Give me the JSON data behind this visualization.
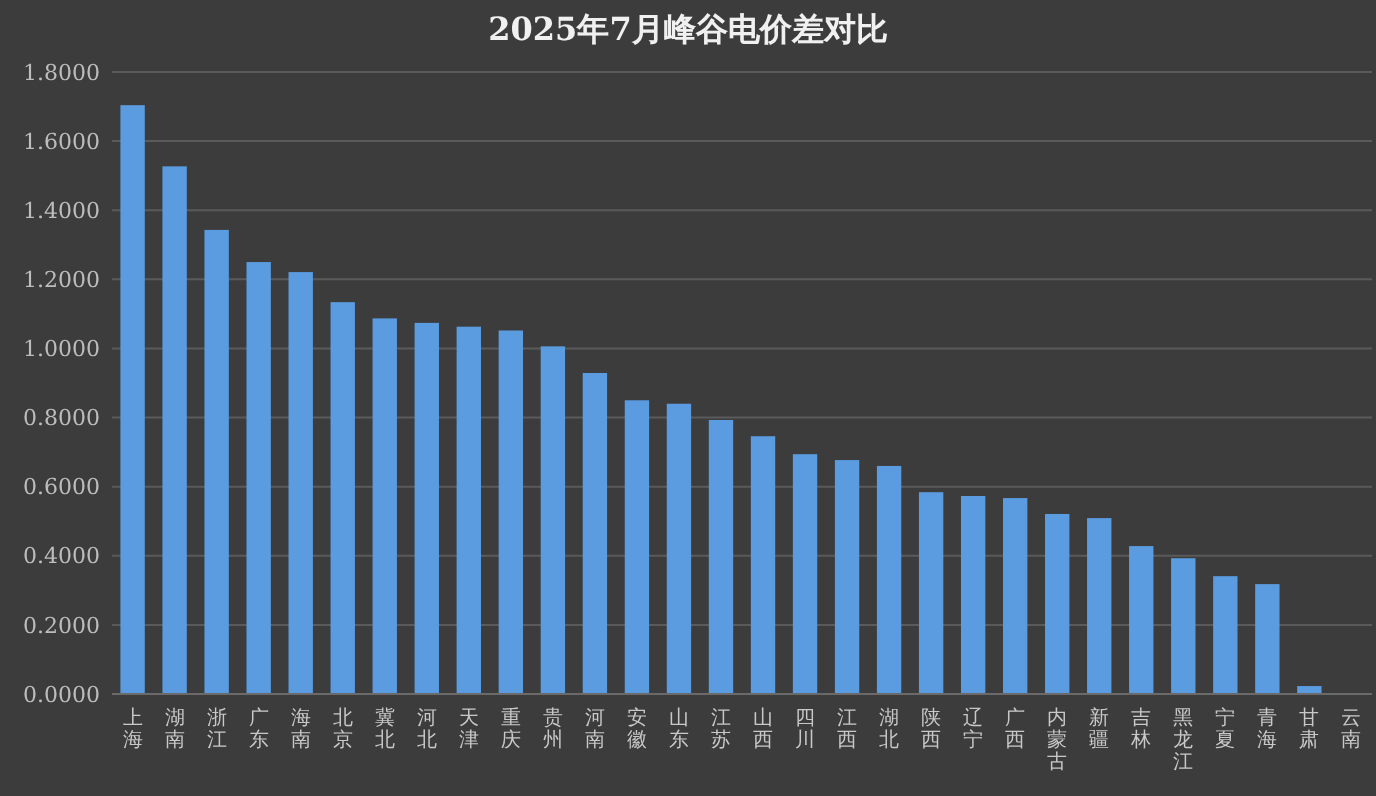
{
  "chart_data": {
    "type": "bar",
    "title": "2025年7月峰谷电价差对比",
    "categories": [
      "上海",
      "湖南",
      "浙江",
      "广东",
      "海南",
      "北京",
      "冀北",
      "河北",
      "天津",
      "重庆",
      "贵州",
      "河南",
      "安徽",
      "山东",
      "江苏",
      "山西",
      "四川",
      "江西",
      "湖北",
      "陕西",
      "辽宁",
      "广西",
      "内蒙古",
      "新疆",
      "吉林",
      "黑龙江",
      "宁夏",
      "青海",
      "甘肃",
      "云南"
    ],
    "values": [
      1.704,
      1.527,
      1.343,
      1.25,
      1.221,
      1.134,
      1.087,
      1.074,
      1.063,
      1.052,
      1.006,
      0.929,
      0.85,
      0.84,
      0.793,
      0.746,
      0.694,
      0.677,
      0.66,
      0.584,
      0.573,
      0.567,
      0.521,
      0.509,
      0.428,
      0.393,
      0.341,
      0.318,
      0.023,
      0
    ],
    "color": "#5b9be0",
    "ylim": [
      0,
      1.8
    ],
    "yticks": [
      {
        "value": 0,
        "label": "0.0000"
      },
      {
        "value": 0.2,
        "label": "0.2000"
      },
      {
        "value": 0.4,
        "label": "0.4000"
      },
      {
        "value": 0.6,
        "label": "0.6000"
      },
      {
        "value": 0.8,
        "label": "0.8000"
      },
      {
        "value": 1,
        "label": "1.0000"
      },
      {
        "value": 1.2,
        "label": "1.2000"
      },
      {
        "value": 1.4,
        "label": "1.4000"
      },
      {
        "value": 1.6,
        "label": "1.6000"
      },
      {
        "value": 1.8,
        "label": "1.8000"
      }
    ],
    "grid": "y"
  }
}
